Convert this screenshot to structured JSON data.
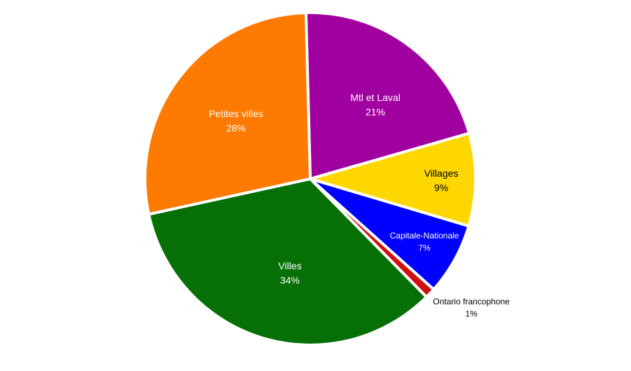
{
  "chart_data": {
    "type": "pie",
    "title": "",
    "slices": [
      {
        "label": "Mtl et Laval",
        "value": 21,
        "display": "21%",
        "color": "#a100a1"
      },
      {
        "label": "Villages",
        "value": 9,
        "display": "9%",
        "color": "#ffd700"
      },
      {
        "label": "Capitale-Nationale",
        "value": 7,
        "display": "7%",
        "color": "#0000ff"
      },
      {
        "label": "Ontario francophone",
        "value": 1,
        "display": "1%",
        "color": "#d01010"
      },
      {
        "label": "Villes",
        "value": 34,
        "display": "34%",
        "color": "#067006"
      },
      {
        "label": "Petites villes",
        "value": 28,
        "display": "28%",
        "color": "#ff7a00"
      }
    ],
    "legend": "none"
  }
}
